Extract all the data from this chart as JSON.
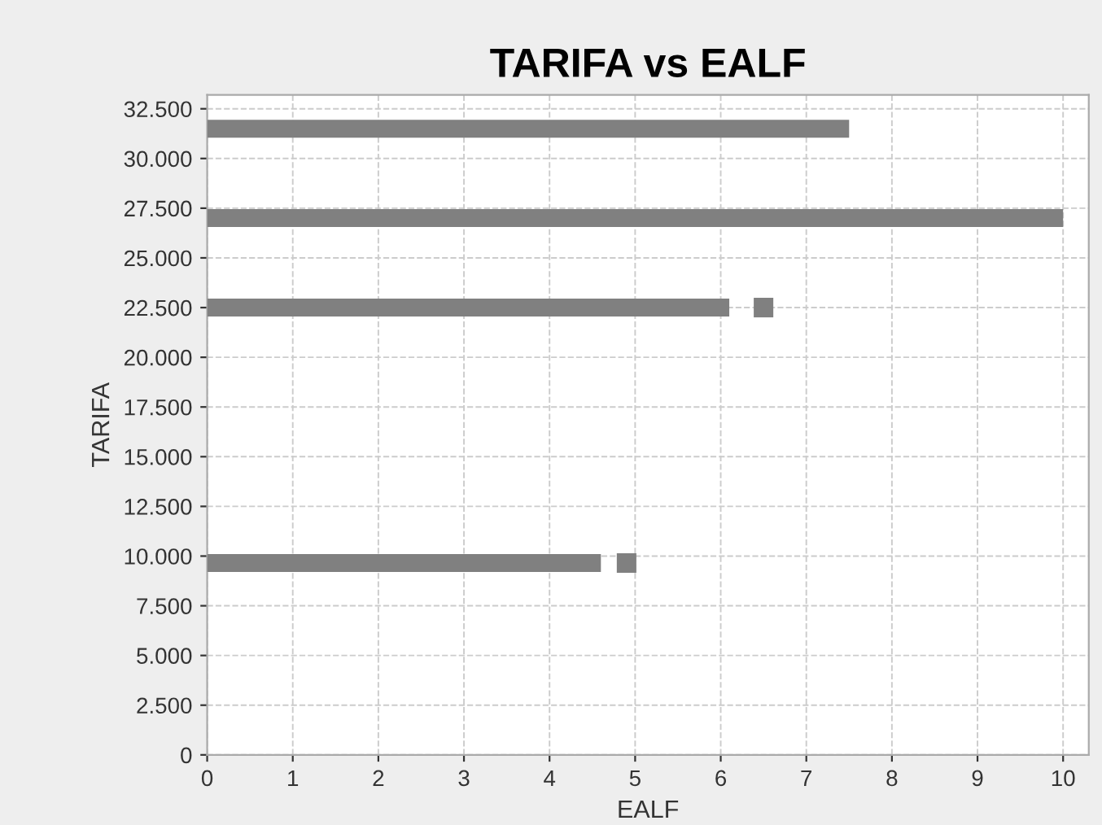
{
  "chart_data": {
    "type": "bar",
    "orientation": "horizontal",
    "title": "TARIFA vs EALF",
    "xlabel": "EALF",
    "ylabel": "TARIFA",
    "series": [
      {
        "color": "#808080",
        "x": [
          9650,
          22500,
          27000,
          31500
        ],
        "values": [
          4.6,
          6.1,
          10,
          7.5
        ]
      },
      {
        "type": "scatter",
        "marker": "square",
        "color": "#808080",
        "x": [
          9650,
          22500
        ],
        "values": [
          4.9,
          6.5
        ]
      }
    ],
    "xlim": [
      0,
      10.3
    ],
    "xticks": [
      0,
      1,
      2,
      3,
      4,
      5,
      6,
      7,
      8,
      9,
      10
    ],
    "ylim": [
      0,
      33200
    ],
    "yticks": [
      0,
      {
        "value": 2500,
        "label": "2.500"
      },
      {
        "value": 5000,
        "label": "5.000"
      },
      {
        "value": 7500,
        "label": "7.500"
      },
      {
        "value": 10000,
        "label": "10.000"
      },
      {
        "value": 12500,
        "label": "12.500"
      },
      {
        "value": 15000,
        "label": "15.000"
      },
      {
        "value": 17500,
        "label": "17.500"
      },
      {
        "value": 20000,
        "label": "20.000"
      },
      {
        "value": 22500,
        "label": "22.500"
      },
      {
        "value": 25000,
        "label": "25.000"
      },
      {
        "value": 27500,
        "label": "27.500"
      },
      {
        "value": 30000,
        "label": "30.000"
      },
      {
        "value": 32500,
        "label": "32.500"
      }
    ],
    "grid": true
  }
}
